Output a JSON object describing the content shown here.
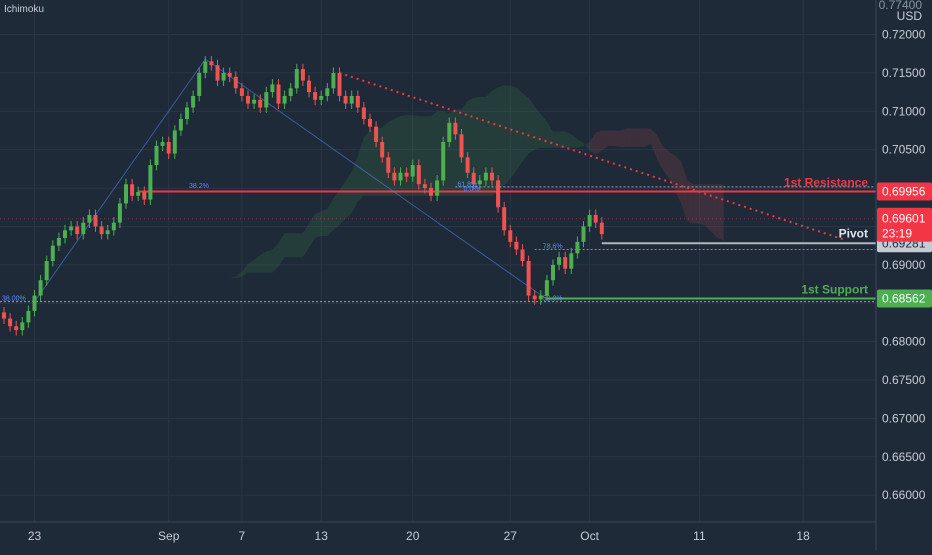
{
  "indicator": "Ichimoku",
  "axis": {
    "unit_top": "0.77400",
    "unit": "USD"
  },
  "chart_data": {
    "type": "candlestick",
    "title": "",
    "ylim": [
      0.6565,
      0.7245
    ],
    "y_ticks": [
      "0.72000",
      "0.71500",
      "0.71000",
      "0.70500",
      "0.70000",
      "0.69500",
      "0.69000",
      "0.68500",
      "0.68000",
      "0.67500",
      "0.67000",
      "0.66500",
      "0.66000"
    ],
    "x_ticks": [
      {
        "label": "23",
        "i": 5
      },
      {
        "label": "Sep",
        "i": 27
      },
      {
        "label": "7",
        "i": 39
      },
      {
        "label": "13",
        "i": 52
      },
      {
        "label": "20",
        "i": 67
      },
      {
        "label": "27",
        "i": 83
      },
      {
        "label": "Oct",
        "i": 96
      },
      {
        "label": "11",
        "i": 114
      },
      {
        "label": "18",
        "i": 131
      }
    ],
    "closes": [
      0.683,
      0.682,
      0.6815,
      0.6825,
      0.684,
      0.686,
      0.688,
      0.6905,
      0.6925,
      0.6935,
      0.6945,
      0.695,
      0.694,
      0.6955,
      0.6965,
      0.695,
      0.694,
      0.6945,
      0.6955,
      0.698,
      0.7005,
      0.699,
      0.6995,
      0.6985,
      0.703,
      0.7055,
      0.706,
      0.7045,
      0.7075,
      0.709,
      0.7105,
      0.712,
      0.715,
      0.7165,
      0.716,
      0.714,
      0.715,
      0.7145,
      0.713,
      0.712,
      0.711,
      0.7115,
      0.7105,
      0.7125,
      0.7135,
      0.711,
      0.712,
      0.713,
      0.7155,
      0.714,
      0.7125,
      0.7115,
      0.712,
      0.713,
      0.715,
      0.712,
      0.711,
      0.712,
      0.7105,
      0.709,
      0.708,
      0.706,
      0.704,
      0.702,
      0.701,
      0.702,
      0.7015,
      0.703,
      0.7005,
      0.7,
      0.699,
      0.701,
      0.706,
      0.7085,
      0.707,
      0.704,
      0.702,
      0.7005,
      0.701,
      0.702,
      0.701,
      0.6975,
      0.6945,
      0.693,
      0.692,
      0.6905,
      0.686,
      0.6855,
      0.686,
      0.688,
      0.69,
      0.691,
      0.6895,
      0.6915,
      0.693,
      0.695,
      0.6965,
      0.6955,
      0.694
    ],
    "annotations": {
      "resistance": {
        "label": "1st Resistance",
        "value": 0.69956,
        "price_label": "0.69956",
        "color": "#f23645"
      },
      "pivot": {
        "label": "Pivot",
        "value": 0.69281,
        "price_label": "0.69281",
        "color": "#b2b5be"
      },
      "support": {
        "label": "1st Support",
        "value": 0.68562,
        "price_label": "0.68562",
        "color": "#4caf50"
      },
      "current": {
        "value": 0.69601,
        "price_label": "0.69601",
        "timer": "23:19",
        "color": "#f23645"
      },
      "fib_labels": [
        "38.2%",
        "61.8%",
        "0.0%",
        "78.6%",
        "50.0%",
        "38.00%"
      ],
      "fib_levels": [
        0.6998,
        0.7,
        0.6995,
        0.6918,
        0.6852,
        0.6852
      ]
    },
    "colors": {
      "up": "#26a69a",
      "up_alt": "#4caf50",
      "down": "#ef5350",
      "grid": "#2a3545",
      "text": "#c8ccd6",
      "bg": "#1e2a38"
    }
  }
}
